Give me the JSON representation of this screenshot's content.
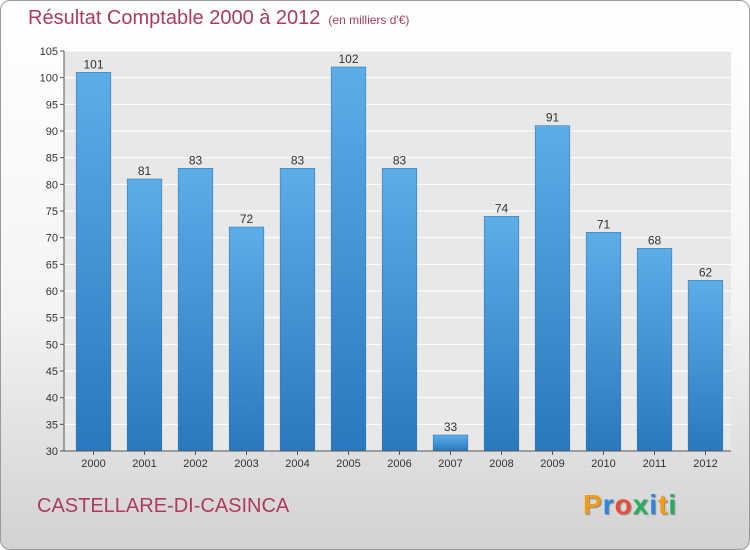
{
  "title": "Résultat Comptable 2000 à 2012",
  "subtitle": "(en milliers d'€)",
  "commune": "CASTELLARE-DI-CASINCA",
  "logo": {
    "letters": [
      "P",
      "r",
      "o",
      "x",
      "i",
      "t",
      "i"
    ],
    "colors": [
      "#f39c12",
      "#2e86de",
      "#e74c3c",
      "#27ae60",
      "#2e86de",
      "#f39c12",
      "#27ae60"
    ]
  },
  "chart_data": {
    "type": "bar",
    "categories": [
      "2000",
      "2001",
      "2002",
      "2003",
      "2004",
      "2005",
      "2006",
      "2007",
      "2008",
      "2009",
      "2010",
      "2011",
      "2012"
    ],
    "values": [
      101,
      81,
      83,
      72,
      83,
      102,
      83,
      33,
      74,
      91,
      71,
      68,
      62
    ],
    "ylim": [
      30,
      105
    ],
    "yticks": [
      30,
      35,
      40,
      45,
      50,
      55,
      60,
      65,
      70,
      75,
      80,
      85,
      90,
      95,
      100,
      105
    ],
    "grid": true,
    "bar_color_top": "#5dade8",
    "bar_color_bottom": "#2a78bd"
  }
}
